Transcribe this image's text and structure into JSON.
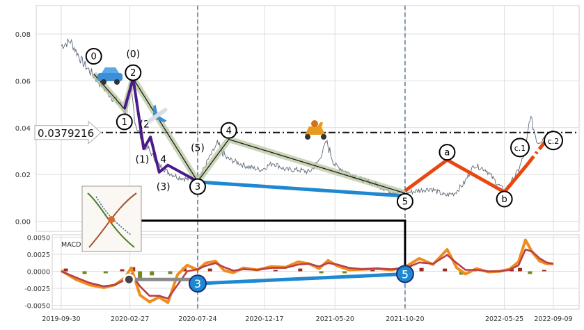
{
  "chart_data": [
    {
      "type": "line",
      "panel": "price",
      "x_range": [
        "2019-09-30",
        "2022-09-09"
      ],
      "ylim": [
        -0.003,
        0.092
      ],
      "y_ticks": [
        "0.00",
        "0.02",
        "0.04",
        "0.06",
        "0.08"
      ],
      "x_ticks": [
        "2019-09-30",
        "2020-02-27",
        "2020-07-24",
        "2020-12-17",
        "2021-05-20",
        "2021-10-20",
        "2022-05-25",
        "2022-09-09"
      ],
      "grid": true,
      "price_line": {
        "label": "0.0379216",
        "value": 0.0379216
      },
      "vertical_markers": [
        "2020-07-24",
        "2021-10-20"
      ],
      "series": [
        {
          "role": "price",
          "color": "#5f6b78",
          "x": [
            "2019-09-30",
            "2019-10-20",
            "2019-11-15",
            "2019-12-15",
            "2020-01-10",
            "2020-02-05",
            "2020-02-20",
            "2020-02-28",
            "2020-03-10",
            "2020-03-25",
            "2020-04-10",
            "2020-05-01",
            "2020-05-20",
            "2020-06-10",
            "2020-07-01",
            "2020-07-24",
            "2020-08-15",
            "2020-09-05",
            "2020-09-25",
            "2020-10-20",
            "2020-11-15",
            "2020-12-10",
            "2021-01-05",
            "2021-02-01",
            "2021-03-01",
            "2021-03-25",
            "2021-04-15",
            "2021-05-01",
            "2021-05-20",
            "2021-06-15",
            "2021-07-15",
            "2021-08-15",
            "2021-09-15",
            "2021-10-20",
            "2021-11-15",
            "2021-12-15",
            "2022-01-15",
            "2022-02-05",
            "2022-02-25",
            "2022-03-20",
            "2022-04-15",
            "2022-05-10",
            "2022-05-25",
            "2022-06-10",
            "2022-06-25",
            "2022-07-10",
            "2022-07-20",
            "2022-08-05",
            "2022-08-20",
            "2022-09-09"
          ],
          "y": [
            0.075,
            0.077,
            0.068,
            0.061,
            0.055,
            0.05,
            0.046,
            0.059,
            0.042,
            0.034,
            0.03,
            0.024,
            0.021,
            0.019,
            0.018,
            0.017,
            0.026,
            0.033,
            0.027,
            0.025,
            0.023,
            0.022,
            0.025,
            0.022,
            0.022,
            0.021,
            0.026,
            0.034,
            0.024,
            0.021,
            0.018,
            0.016,
            0.013,
            0.012,
            0.013,
            0.014,
            0.011,
            0.012,
            0.016,
            0.024,
            0.022,
            0.016,
            0.013,
            0.017,
            0.022,
            0.03,
            0.045,
            0.034,
            0.036,
            0.035
          ]
        }
      ],
      "elliott_labels": [
        {
          "text": "0",
          "circled": true,
          "x": "2019-12-10",
          "y": 0.0705
        },
        {
          "text": "(0)",
          "circled": false,
          "x": "2020-03-05",
          "y": 0.0715
        },
        {
          "text": "2",
          "circled": true,
          "x": "2020-03-05",
          "y": 0.0635
        },
        {
          "text": "1",
          "circled": true,
          "x": "2020-02-15",
          "y": 0.0425
        },
        {
          "text": "(2",
          "circled": false,
          "x": "2020-03-30",
          "y": 0.0415
        },
        {
          "text": "(1)",
          "circled": false,
          "x": "2020-03-25",
          "y": 0.0265
        },
        {
          "text": "4",
          "circled": false,
          "x": "2020-05-10",
          "y": 0.0265
        },
        {
          "text": "(3)",
          "circled": false,
          "x": "2020-05-10",
          "y": 0.0148
        },
        {
          "text": "(5)",
          "circled": false,
          "x": "2020-07-24",
          "y": 0.0315
        },
        {
          "text": "3",
          "circled": true,
          "x": "2020-07-24",
          "y": 0.0148
        },
        {
          "text": "4",
          "circled": true,
          "x": "2020-09-30",
          "y": 0.0388
        },
        {
          "text": "5",
          "circled": true,
          "x": "2021-10-20",
          "y": 0.0085
        },
        {
          "text": "a",
          "circled": true,
          "x": "2022-01-20",
          "y": 0.0295
        },
        {
          "text": "b",
          "circled": true,
          "x": "2022-05-25",
          "y": 0.0095
        },
        {
          "text": "c.1",
          "circled": true,
          "x": "2022-06-28",
          "y": 0.0315
        },
        {
          "text": "c.2",
          "circled": true,
          "x": "2022-09-09",
          "y": 0.0345
        }
      ]
    },
    {
      "type": "line",
      "panel": "macd",
      "label": "MACD (12,26,9)",
      "ylim": [
        -0.0057,
        0.0057
      ],
      "y_ticks": [
        "0.0050",
        "0.0025",
        "0.0000",
        "-0.0025",
        "-0.0050"
      ],
      "grid": true,
      "series": [
        {
          "role": "macd",
          "color": "#f08c1e",
          "x": [
            "2019-09-30",
            "2019-11-01",
            "2019-12-01",
            "2020-01-01",
            "2020-01-25",
            "2020-02-15",
            "2020-03-01",
            "2020-03-20",
            "2020-04-10",
            "2020-05-01",
            "2020-05-20",
            "2020-06-10",
            "2020-07-01",
            "2020-07-24",
            "2020-08-10",
            "2020-09-01",
            "2020-09-20",
            "2020-10-10",
            "2020-11-01",
            "2020-12-01",
            "2021-01-01",
            "2021-02-01",
            "2021-03-01",
            "2021-03-25",
            "2021-04-15",
            "2021-05-05",
            "2021-05-25",
            "2021-06-20",
            "2021-07-20",
            "2021-08-20",
            "2021-09-20",
            "2021-10-20",
            "2021-11-20",
            "2021-12-20",
            "2022-01-20",
            "2022-02-10",
            "2022-03-01",
            "2022-03-25",
            "2022-04-20",
            "2022-05-15",
            "2022-06-05",
            "2022-06-25",
            "2022-07-10",
            "2022-07-25",
            "2022-08-10",
            "2022-08-25",
            "2022-09-09"
          ],
          "y": [
            0.0001,
            -0.0012,
            -0.002,
            -0.0024,
            -0.002,
            -0.001,
            0.0005,
            -0.0035,
            -0.0045,
            -0.0038,
            -0.0046,
            -0.0005,
            0.0009,
            0.0002,
            0.0012,
            0.0015,
            0.0001,
            -0.0002,
            0.0005,
            0.0002,
            0.0007,
            0.0006,
            0.0014,
            0.0011,
            0.0004,
            0.0016,
            0.0008,
            0.0002,
            0.0003,
            0.0004,
            0.0002,
            0.0006,
            0.0019,
            0.001,
            0.0032,
            0.0005,
            -0.0004,
            0.0004,
            -0.0001,
            0.0,
            0.0003,
            0.0014,
            0.0046,
            0.0028,
            0.0015,
            0.0011,
            0.0011
          ]
        },
        {
          "role": "signal",
          "color": "#b84048",
          "x": [
            "2019-09-30",
            "2019-11-01",
            "2019-12-01",
            "2020-01-01",
            "2020-01-25",
            "2020-02-15",
            "2020-03-01",
            "2020-03-20",
            "2020-04-10",
            "2020-05-01",
            "2020-05-20",
            "2020-06-10",
            "2020-07-01",
            "2020-07-24",
            "2020-08-10",
            "2020-09-01",
            "2020-09-20",
            "2020-10-10",
            "2020-11-01",
            "2020-12-01",
            "2021-01-01",
            "2021-02-01",
            "2021-03-01",
            "2021-03-25",
            "2021-04-15",
            "2021-05-05",
            "2021-05-25",
            "2021-06-20",
            "2021-07-20",
            "2021-08-20",
            "2021-09-20",
            "2021-10-20",
            "2021-11-20",
            "2021-12-20",
            "2022-01-20",
            "2022-02-10",
            "2022-03-01",
            "2022-03-25",
            "2022-04-20",
            "2022-05-15",
            "2022-06-05",
            "2022-06-25",
            "2022-07-10",
            "2022-07-25",
            "2022-08-10",
            "2022-08-25",
            "2022-09-09"
          ],
          "y": [
            0.0,
            -0.0009,
            -0.0017,
            -0.0022,
            -0.002,
            -0.0013,
            -0.0004,
            -0.0022,
            -0.0036,
            -0.0036,
            -0.004,
            -0.002,
            0.0,
            0.0003,
            0.0008,
            0.0012,
            0.0006,
            0.0001,
            0.0003,
            0.0002,
            0.0005,
            0.0005,
            0.001,
            0.0011,
            0.0007,
            0.0012,
            0.001,
            0.0005,
            0.0003,
            0.0004,
            0.0003,
            0.0004,
            0.0013,
            0.0011,
            0.0024,
            0.0012,
            0.0002,
            0.0002,
            0.0,
            0.0,
            0.0002,
            0.0009,
            0.0032,
            0.0029,
            0.0019,
            0.0013,
            0.0011
          ]
        }
      ],
      "histogram": {
        "x": [
          "2019-10-10",
          "2019-11-20",
          "2020-01-05",
          "2020-02-10",
          "2020-03-05",
          "2020-03-20",
          "2020-04-15",
          "2020-05-25",
          "2020-06-25",
          "2020-08-20",
          "2020-10-10",
          "2021-01-10",
          "2021-03-05",
          "2021-04-20",
          "2021-06-10",
          "2021-08-10",
          "2021-10-10",
          "2021-11-25",
          "2022-01-15",
          "2022-02-20",
          "2022-03-20",
          "2022-04-25",
          "2022-06-10",
          "2022-06-28",
          "2022-07-20",
          "2022-08-20"
        ],
        "y": [
          0.0004,
          -0.0004,
          -0.0003,
          0.0003,
          0.0006,
          -0.0011,
          -0.0006,
          -0.0004,
          0.0006,
          0.0004,
          -0.0002,
          0.0002,
          0.0004,
          -0.0003,
          -0.0003,
          0.0002,
          0.0002,
          0.0005,
          0.0004,
          -0.0005,
          0.0002,
          -0.0002,
          0.0003,
          0.0005,
          -0.0004,
          0.0002
        ]
      },
      "divergence_labels": [
        {
          "text": "3",
          "x": "2020-07-24",
          "y": -0.0018
        },
        {
          "text": "5",
          "x": "2021-10-20",
          "y": -0.0004
        }
      ]
    }
  ]
}
